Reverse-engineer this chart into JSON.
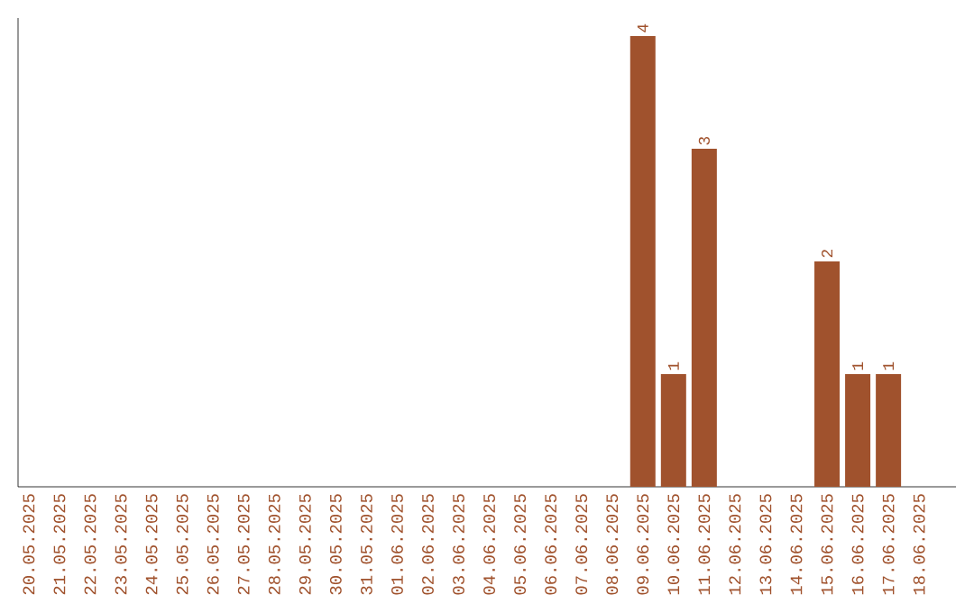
{
  "chart_data": {
    "type": "bar",
    "categories": [
      "20.05.2025",
      "21.05.2025",
      "22.05.2025",
      "23.05.2025",
      "24.05.2025",
      "25.05.2025",
      "26.05.2025",
      "27.05.2025",
      "28.05.2025",
      "29.05.2025",
      "30.05.2025",
      "31.05.2025",
      "01.06.2025",
      "02.06.2025",
      "03.06.2025",
      "04.06.2025",
      "05.06.2025",
      "06.06.2025",
      "07.06.2025",
      "08.06.2025",
      "09.06.2025",
      "10.06.2025",
      "11.06.2025",
      "12.06.2025",
      "13.06.2025",
      "14.06.2025",
      "15.06.2025",
      "16.06.2025",
      "17.06.2025",
      "18.06.2025"
    ],
    "values": [
      null,
      null,
      null,
      null,
      null,
      null,
      null,
      null,
      null,
      null,
      null,
      null,
      null,
      null,
      null,
      null,
      null,
      null,
      null,
      null,
      4,
      1,
      3,
      null,
      null,
      null,
      2,
      1,
      1,
      null
    ],
    "data_labels": true,
    "color": "#a0522d"
  }
}
